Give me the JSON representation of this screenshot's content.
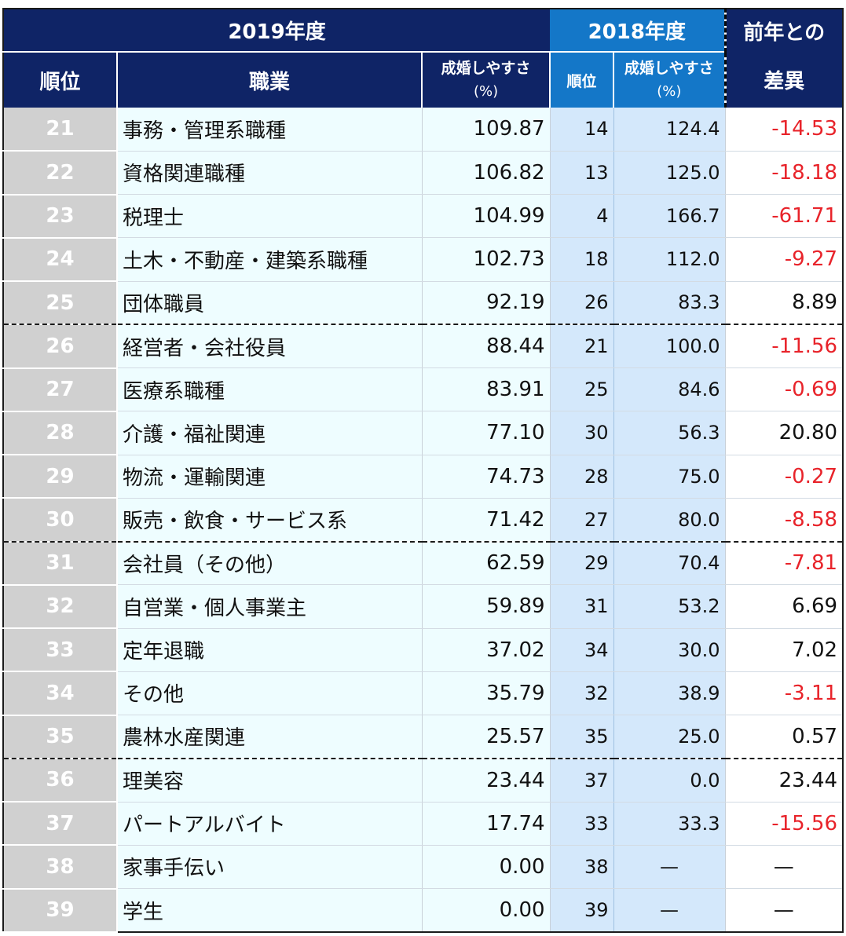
{
  "header": {
    "year_2019": "2019年度",
    "year_2018": "2018年度",
    "diff_line1": "前年との",
    "diff_line2": "差異",
    "rank": "順位",
    "job": "職業",
    "rate_label": "成婚しやすさ",
    "rate_unit": "(%)",
    "prev_rank": "順位",
    "prev_rate_label": "成婚しやすさ",
    "prev_rate_unit": "(%)"
  },
  "rows": [
    {
      "rank": "21",
      "job": "事務・管理系職種",
      "rate": "109.87",
      "prev_rank": "14",
      "prev_rate": "124.4",
      "diff": "-14.53",
      "negative": true
    },
    {
      "rank": "22",
      "job": "資格関連職種",
      "rate": "106.82",
      "prev_rank": "13",
      "prev_rate": "125.0",
      "diff": "-18.18",
      "negative": true
    },
    {
      "rank": "23",
      "job": "税理士",
      "rate": "104.99",
      "prev_rank": "4",
      "prev_rate": "166.7",
      "diff": "-61.71",
      "negative": true
    },
    {
      "rank": "24",
      "job": "土木・不動産・建築系職種",
      "rate": "102.73",
      "prev_rank": "18",
      "prev_rate": "112.0",
      "diff": "-9.27",
      "negative": true
    },
    {
      "rank": "25",
      "job": "団体職員",
      "rate": "92.19",
      "prev_rank": "26",
      "prev_rate": "83.3",
      "diff": "8.89",
      "negative": false
    },
    {
      "rank": "26",
      "job": "経営者・会社役員",
      "rate": "88.44",
      "prev_rank": "21",
      "prev_rate": "100.0",
      "diff": "-11.56",
      "negative": true
    },
    {
      "rank": "27",
      "job": "医療系職種",
      "rate": "83.91",
      "prev_rank": "25",
      "prev_rate": "84.6",
      "diff": "-0.69",
      "negative": true
    },
    {
      "rank": "28",
      "job": "介護・福祉関連",
      "rate": "77.10",
      "prev_rank": "30",
      "prev_rate": "56.3",
      "diff": "20.80",
      "negative": false
    },
    {
      "rank": "29",
      "job": "物流・運輸関連",
      "rate": "74.73",
      "prev_rank": "28",
      "prev_rate": "75.0",
      "diff": "-0.27",
      "negative": true
    },
    {
      "rank": "30",
      "job": "販売・飲食・サービス系",
      "rate": "71.42",
      "prev_rank": "27",
      "prev_rate": "80.0",
      "diff": "-8.58",
      "negative": true
    },
    {
      "rank": "31",
      "job": "会社員（その他）",
      "rate": "62.59",
      "prev_rank": "29",
      "prev_rate": "70.4",
      "diff": "-7.81",
      "negative": true
    },
    {
      "rank": "32",
      "job": "自営業・個人事業主",
      "rate": "59.89",
      "prev_rank": "31",
      "prev_rate": "53.2",
      "diff": "6.69",
      "negative": false
    },
    {
      "rank": "33",
      "job": "定年退職",
      "rate": "37.02",
      "prev_rank": "34",
      "prev_rate": "30.0",
      "diff": "7.02",
      "negative": false
    },
    {
      "rank": "34",
      "job": "その他",
      "rate": "35.79",
      "prev_rank": "32",
      "prev_rate": "38.9",
      "diff": "-3.11",
      "negative": true
    },
    {
      "rank": "35",
      "job": "農林水産関連",
      "rate": "25.57",
      "prev_rank": "35",
      "prev_rate": "25.0",
      "diff": "0.57",
      "negative": false
    },
    {
      "rank": "36",
      "job": "理美容",
      "rate": "23.44",
      "prev_rank": "37",
      "prev_rate": "0.0",
      "diff": "23.44",
      "negative": false
    },
    {
      "rank": "37",
      "job": "パートアルバイト",
      "rate": "17.74",
      "prev_rank": "33",
      "prev_rate": "33.3",
      "diff": "-15.56",
      "negative": true
    },
    {
      "rank": "38",
      "job": "家事手伝い",
      "rate": "0.00",
      "prev_rank": "38",
      "prev_rate": "—",
      "diff": "—",
      "negative": false
    },
    {
      "rank": "39",
      "job": "学生",
      "rate": "0.00",
      "prev_rank": "39",
      "prev_rate": "—",
      "diff": "—",
      "negative": false
    }
  ],
  "group_separators_after": [
    "25",
    "30",
    "35"
  ],
  "colors": {
    "header_navy": "#0f2466",
    "header_blue": "#1477c8",
    "rank_bg": "#d0d0d0",
    "row_bg": "#eefdff",
    "prev_bg": "#d4e8fb",
    "negative": "#e8232a"
  }
}
